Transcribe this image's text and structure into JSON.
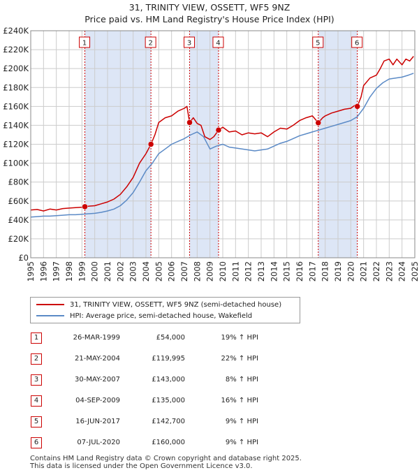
{
  "title_line1": "31, TRINITY VIEW, OSSETT, WF5 9NZ",
  "title_line2": "Price paid vs. HM Land Registry's House Price Index (HPI)",
  "colors": {
    "property": "#cc0000",
    "hpi": "#5b8ac6",
    "shade": "#dde6f6",
    "grid": "#cccccc"
  },
  "legend": {
    "property": "31, TRINITY VIEW, OSSETT, WF5 9NZ (semi-detached house)",
    "hpi": "HPI: Average price, semi-detached house, Wakefield"
  },
  "sales": [
    {
      "num": "1",
      "date": "26-MAR-1999",
      "price": "£54,000",
      "hpi": "19% ↑ HPI"
    },
    {
      "num": "2",
      "date": "21-MAY-2004",
      "price": "£119,995",
      "hpi": "22% ↑ HPI"
    },
    {
      "num": "3",
      "date": "30-MAY-2007",
      "price": "£143,000",
      "hpi": "8% ↑ HPI"
    },
    {
      "num": "4",
      "date": "04-SEP-2009",
      "price": "£135,000",
      "hpi": "16% ↑ HPI"
    },
    {
      "num": "5",
      "date": "16-JUN-2017",
      "price": "£142,700",
      "hpi": "9% ↑ HPI"
    },
    {
      "num": "6",
      "date": "07-JUL-2020",
      "price": "£160,000",
      "hpi": "9% ↑ HPI"
    }
  ],
  "footer_line1": "Contains HM Land Registry data © Crown copyright and database right 2025.",
  "footer_line2": "This data is licensed under the Open Government Licence v3.0.",
  "chart_data": {
    "type": "line",
    "xlim": [
      1995,
      2025
    ],
    "ylim": [
      0,
      240000
    ],
    "x_ticks": [
      1995,
      1996,
      1997,
      1998,
      1999,
      2000,
      2001,
      2002,
      2003,
      2004,
      2005,
      2006,
      2007,
      2008,
      2009,
      2010,
      2011,
      2012,
      2013,
      2014,
      2015,
      2016,
      2017,
      2018,
      2019,
      2020,
      2021,
      2022,
      2023,
      2024,
      2025
    ],
    "y_ticks": [
      {
        "value": 0,
        "label": "£0"
      },
      {
        "value": 20000,
        "label": "£20K"
      },
      {
        "value": 40000,
        "label": "£40K"
      },
      {
        "value": 60000,
        "label": "£60K"
      },
      {
        "value": 80000,
        "label": "£80K"
      },
      {
        "value": 100000,
        "label": "£100K"
      },
      {
        "value": 120000,
        "label": "£120K"
      },
      {
        "value": 140000,
        "label": "£140K"
      },
      {
        "value": 160000,
        "label": "£160K"
      },
      {
        "value": 180000,
        "label": "£180K"
      },
      {
        "value": 200000,
        "label": "£200K"
      },
      {
        "value": 220000,
        "label": "£220K"
      },
      {
        "value": 240000,
        "label": "£240K"
      }
    ],
    "grid": true,
    "shaded_spans": [
      [
        1999.23,
        2004.39
      ],
      [
        2007.41,
        2009.67
      ],
      [
        2017.46,
        2020.51
      ]
    ],
    "sale_markers": [
      {
        "label": "1",
        "x": 1999.23,
        "y": 54000
      },
      {
        "label": "2",
        "x": 2004.39,
        "y": 119995
      },
      {
        "label": "3",
        "x": 2007.41,
        "y": 143000
      },
      {
        "label": "4",
        "x": 2009.67,
        "y": 135000
      },
      {
        "label": "5",
        "x": 2017.46,
        "y": 142700
      },
      {
        "label": "6",
        "x": 2020.51,
        "y": 160000
      }
    ],
    "series": [
      {
        "name": "31, TRINITY VIEW, OSSETT, WF5 9NZ (semi-detached house)",
        "color": "#cc0000",
        "x": [
          1995,
          1995.5,
          1996,
          1996.5,
          1997,
          1997.5,
          1998,
          1998.5,
          1999,
          1999.23,
          1999.5,
          2000,
          2000.5,
          2001,
          2001.5,
          2002,
          2002.5,
          2003,
          2003.5,
          2004,
          2004.39,
          2004.7,
          2005,
          2005.5,
          2006,
          2006.5,
          2007,
          2007.2,
          2007.41,
          2007.7,
          2008,
          2008.3,
          2008.6,
          2009,
          2009.3,
          2009.67,
          2010,
          2010.5,
          2011,
          2011.5,
          2012,
          2012.5,
          2013,
          2013.5,
          2014,
          2014.5,
          2015,
          2015.5,
          2016,
          2016.5,
          2017,
          2017.46,
          2017.8,
          2018,
          2018.5,
          2019,
          2019.5,
          2020,
          2020.3,
          2020.51,
          2020.8,
          2021,
          2021.5,
          2022,
          2022.3,
          2022.6,
          2023,
          2023.3,
          2023.6,
          2024,
          2024.3,
          2024.6,
          2024.9
        ],
        "y": [
          50500,
          51000,
          49500,
          51500,
          50500,
          52000,
          52500,
          53000,
          53500,
          54000,
          54500,
          55000,
          57000,
          59000,
          62000,
          67000,
          75000,
          85000,
          100000,
          110000,
          119995,
          130000,
          143000,
          148000,
          150000,
          155000,
          158000,
          160000,
          143000,
          148000,
          142000,
          140000,
          128000,
          125000,
          128000,
          135000,
          138000,
          133000,
          134000,
          130000,
          132000,
          131000,
          132000,
          128000,
          133000,
          137000,
          136000,
          140000,
          145000,
          148000,
          150000,
          142700,
          148000,
          150000,
          153000,
          155000,
          157000,
          158000,
          161000,
          160000,
          170000,
          182000,
          190000,
          193000,
          200000,
          208000,
          210000,
          204000,
          210000,
          204000,
          210000,
          208000,
          213000
        ]
      },
      {
        "name": "HPI: Average price, semi-detached house, Wakefield",
        "color": "#5b8ac6",
        "x": [
          1995,
          1995.5,
          1996,
          1996.5,
          1997,
          1997.5,
          1998,
          1998.5,
          1999,
          1999.5,
          2000,
          2000.5,
          2001,
          2001.5,
          2002,
          2002.5,
          2003,
          2003.5,
          2004,
          2004.5,
          2005,
          2005.5,
          2006,
          2006.5,
          2007,
          2007.5,
          2008,
          2008.5,
          2009,
          2009.5,
          2010,
          2010.5,
          2011,
          2011.5,
          2012,
          2012.5,
          2013,
          2013.5,
          2014,
          2014.5,
          2015,
          2015.5,
          2016,
          2016.5,
          2017,
          2017.5,
          2018,
          2018.5,
          2019,
          2019.5,
          2020,
          2020.5,
          2021,
          2021.5,
          2022,
          2022.5,
          2023,
          2023.5,
          2024,
          2024.5,
          2024.9
        ],
        "y": [
          43000,
          43500,
          44000,
          44000,
          44500,
          45000,
          45500,
          45500,
          46000,
          46500,
          47000,
          48000,
          49500,
          51500,
          55000,
          61000,
          69000,
          80000,
          92000,
          100000,
          110000,
          115000,
          120000,
          123000,
          126000,
          130000,
          133000,
          128000,
          115000,
          118000,
          120000,
          117000,
          116000,
          115000,
          114000,
          113000,
          114000,
          115000,
          118000,
          121000,
          123000,
          126000,
          129000,
          131000,
          133000,
          135000,
          137000,
          139000,
          141000,
          143000,
          145000,
          149000,
          158000,
          170000,
          179000,
          185000,
          189000,
          190000,
          191000,
          193000,
          195000
        ]
      }
    ]
  }
}
